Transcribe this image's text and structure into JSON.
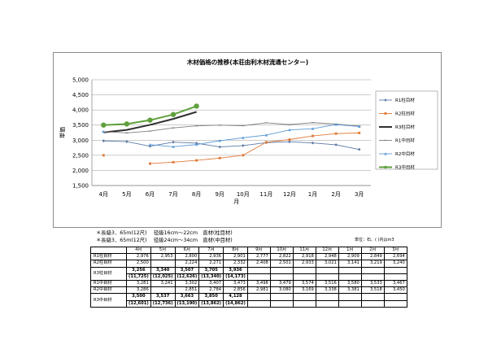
{
  "chart_data": {
    "type": "line",
    "title": "木材価格の推移(本荘由利木材流通センター)",
    "xlabel": "月",
    "ylabel": "単価",
    "categories": [
      "4月",
      "5月",
      "6月",
      "7月",
      "8月",
      "9月",
      "10月",
      "11月",
      "12月",
      "1月",
      "2月",
      "3月"
    ],
    "ylim": [
      1500,
      5000
    ],
    "yticks": [
      "1,500",
      "2,000",
      "2,500",
      "3,000",
      "3,500",
      "4,000",
      "4,500",
      "5,000"
    ],
    "grid": true,
    "legend_position": "right",
    "series": [
      {
        "name": "R1柱目材",
        "color": "#5b79a8",
        "marker": "diamond",
        "values": [
          2976,
          2953,
          2800,
          2936,
          2901,
          2777,
          2822,
          2918,
          2948,
          2909,
          2849,
          2694
        ]
      },
      {
        "name": "R2柱目材",
        "color": "#e07b39",
        "marker": "square",
        "values": [
          2500,
          null,
          2224,
          2271,
          2332,
          2408,
          2501,
          2933,
          3021,
          3141,
          3219,
          3240
        ]
      },
      {
        "name": "R3柱目材",
        "color": "#303030",
        "marker": "none",
        "values": [
          3256,
          3340,
          3507,
          3705,
          3936,
          null,
          null,
          null,
          null,
          null,
          null,
          null
        ]
      },
      {
        "name": "R1中目材",
        "color": "#808080",
        "marker": "line",
        "values": [
          3281,
          3241,
          3302,
          3407,
          3473,
          3498,
          3479,
          3574,
          3516,
          3580,
          3533,
          3467
        ]
      },
      {
        "name": "R2中目材",
        "color": "#5b9bd5",
        "marker": "triangle",
        "values": [
          3286,
          null,
          2851,
          2784,
          2856,
          2981,
          3080,
          3169,
          3338,
          3381,
          3518,
          3450
        ]
      },
      {
        "name": "R3中目材",
        "color": "#5fa03c",
        "marker": "circle",
        "values": [
          3500,
          3537,
          3663,
          3850,
          4128,
          null,
          null,
          null,
          null,
          null,
          null,
          null
        ]
      }
    ]
  },
  "notes": [
    "＊長級3．65m(12尺)　 径級16cm～22cm　直材(柱目材)",
    "＊長級3．65m(12尺)　 径級24cm～34cm　直材(中目材)"
  ],
  "unit_note": "単位：石、( )内はm3",
  "table": {
    "header": [
      "",
      "4月",
      "5月",
      "6月",
      "7月",
      "8月",
      "9月",
      "10月",
      "11月",
      "12月",
      "1月",
      "2月",
      "3月"
    ],
    "rows": [
      {
        "label": "R1柱目材",
        "cells": [
          "2,976",
          "2,953",
          "2,800",
          "2,936",
          "2,901",
          "2,777",
          "2,822",
          "2,918",
          "2,948",
          "2,909",
          "2,849",
          "2,694"
        ]
      },
      {
        "label": "R2柱目材",
        "cells": [
          "2,500",
          "",
          "2,224",
          "2,271",
          "2,332",
          "2,408",
          "2,501",
          "2,933",
          "3,021",
          "3,141",
          "3,219",
          "3,240"
        ]
      },
      {
        "label": "R3柱目材",
        "bold": true,
        "cells": [
          "3,256",
          "3,340",
          "3,507",
          "3,705",
          "3,936",
          "",
          "",
          "",
          "",
          "",
          "",
          ""
        ],
        "sub": [
          "(11,725)",
          "(12,025)",
          "(12,626)",
          "(13,340)",
          "(14,173)",
          "",
          "",
          "",
          "",
          "",
          "",
          ""
        ]
      },
      {
        "label": "R1中目材",
        "cells": [
          "3,281",
          "3,241",
          "3,302",
          "3,407",
          "3,473",
          "3,498",
          "3,479",
          "3,574",
          "3,516",
          "3,580",
          "3,533",
          "3,467"
        ]
      },
      {
        "label": "R2中目材",
        "cells": [
          "3,286",
          "",
          "2,851",
          "2,784",
          "2,856",
          "2,981",
          "3,080",
          "3,169",
          "3,338",
          "3,381",
          "3,518",
          "3,450"
        ]
      },
      {
        "label": "R3中目材",
        "bold": true,
        "cells": [
          "3,500",
          "3,537",
          "3,663",
          "3,850",
          "4,128",
          "",
          "",
          "",
          "",
          "",
          "",
          ""
        ],
        "sub": [
          "(12,601)",
          "(12,736)",
          "(13,190)",
          "(13,862)",
          "(14,862)",
          "",
          "",
          "",
          "",
          "",
          "",
          ""
        ]
      }
    ]
  }
}
